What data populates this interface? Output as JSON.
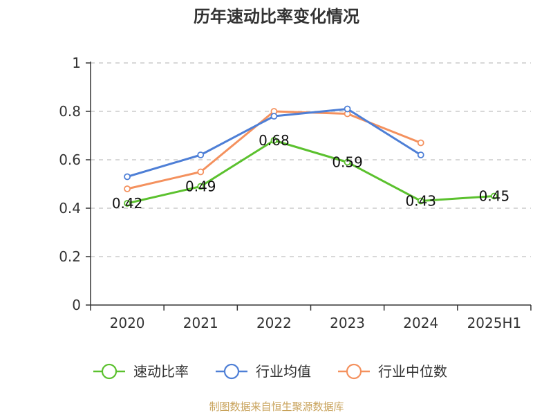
{
  "source_note": "制图数据来自恒生聚源数据库",
  "colors": {
    "source_note": "#c8a25a",
    "grid": "#cccccc",
    "axis": "#333333"
  },
  "chart_data": {
    "type": "line",
    "title": "历年速动比率变化情况",
    "xlabel": "",
    "ylabel": "",
    "categories": [
      "2020",
      "2021",
      "2022",
      "2023",
      "2024",
      "2025H1"
    ],
    "ylim": [
      0,
      1
    ],
    "yticks": [
      "0",
      "0.2",
      "0.4",
      "0.6",
      "0.8",
      "1"
    ],
    "grid": true,
    "legend_position": "bottom",
    "series": [
      {
        "name": "速动比率",
        "color": "#5bc12e",
        "values": [
          0.42,
          0.49,
          0.68,
          0.59,
          0.43,
          0.45
        ],
        "data_labels": [
          "0.42",
          "0.49",
          "0.68",
          "0.59",
          "0.43",
          "0.45"
        ]
      },
      {
        "name": "行业均值",
        "color": "#4e7fd6",
        "values": [
          0.53,
          0.62,
          0.78,
          0.81,
          0.62,
          null
        ]
      },
      {
        "name": "行业中位数",
        "color": "#f4915e",
        "values": [
          0.48,
          0.55,
          0.8,
          0.79,
          0.67,
          null
        ]
      }
    ]
  }
}
